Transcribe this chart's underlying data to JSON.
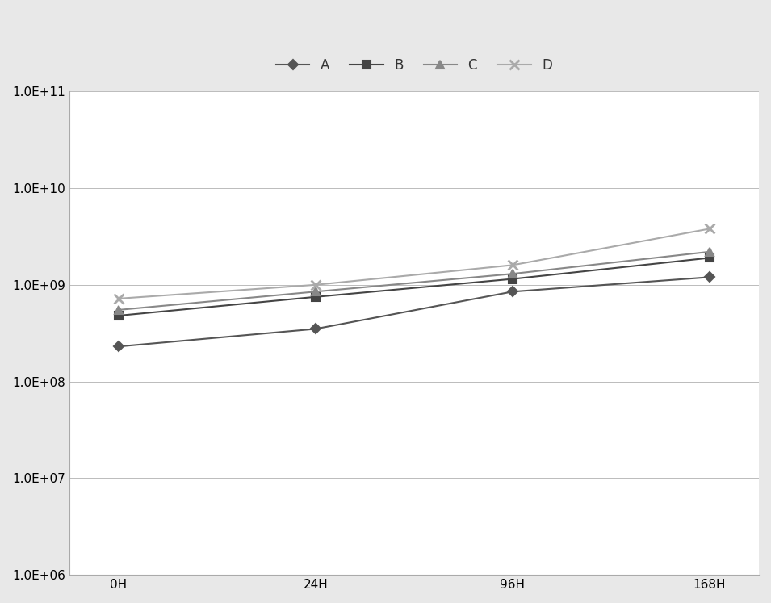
{
  "series_order": [
    "A",
    "B",
    "C",
    "D"
  ],
  "series": {
    "A": {
      "x": [
        0,
        1,
        2,
        3
      ],
      "y": [
        230000000.0,
        350000000.0,
        850000000.0,
        1200000000.0
      ],
      "color": "#555555",
      "marker": "D",
      "markersize": 6,
      "linewidth": 1.5,
      "label": "A"
    },
    "B": {
      "x": [
        0,
        1,
        2,
        3
      ],
      "y": [
        480000000.0,
        750000000.0,
        1150000000.0,
        1900000000.0
      ],
      "color": "#444444",
      "marker": "s",
      "markersize": 7,
      "linewidth": 1.5,
      "label": "B"
    },
    "C": {
      "x": [
        0,
        1,
        2,
        3
      ],
      "y": [
        550000000.0,
        850000000.0,
        1300000000.0,
        2200000000.0
      ],
      "color": "#888888",
      "marker": "^",
      "markersize": 7,
      "linewidth": 1.5,
      "label": "C"
    },
    "D": {
      "x": [
        0,
        1,
        2,
        3
      ],
      "y": [
        720000000.0,
        1000000000.0,
        1600000000.0,
        3800000000.0
      ],
      "color": "#aaaaaa",
      "marker": "x",
      "markersize": 9,
      "linewidth": 1.5,
      "label": "D",
      "markeredgewidth": 2.0
    }
  },
  "xtick_labels": [
    "0H",
    "24H",
    "96H",
    "168H"
  ],
  "xtick_positions": [
    0,
    1,
    2,
    3
  ],
  "ylim": [
    1000000.0,
    100000000000.0
  ],
  "xlim": [
    -0.25,
    3.25
  ],
  "background_color": "#ffffff",
  "plot_bg_color": "#ffffff",
  "outer_bg_color": "#e8e8e8",
  "grid_color": "#bbbbbb",
  "grid_linewidth": 0.7,
  "legend_loc": "upper center",
  "legend_ncol": 4,
  "legend_fontsize": 12,
  "tick_fontsize": 11,
  "ytick_labels": [
    "1.0E+06",
    "1.0E+07",
    "1.0E+08",
    "1.0E+09",
    "1.0E+10",
    "1.0E+11"
  ],
  "ytick_values": [
    1000000.0,
    10000000.0,
    100000000.0,
    1000000000.0,
    10000000000.0,
    100000000000.0
  ]
}
